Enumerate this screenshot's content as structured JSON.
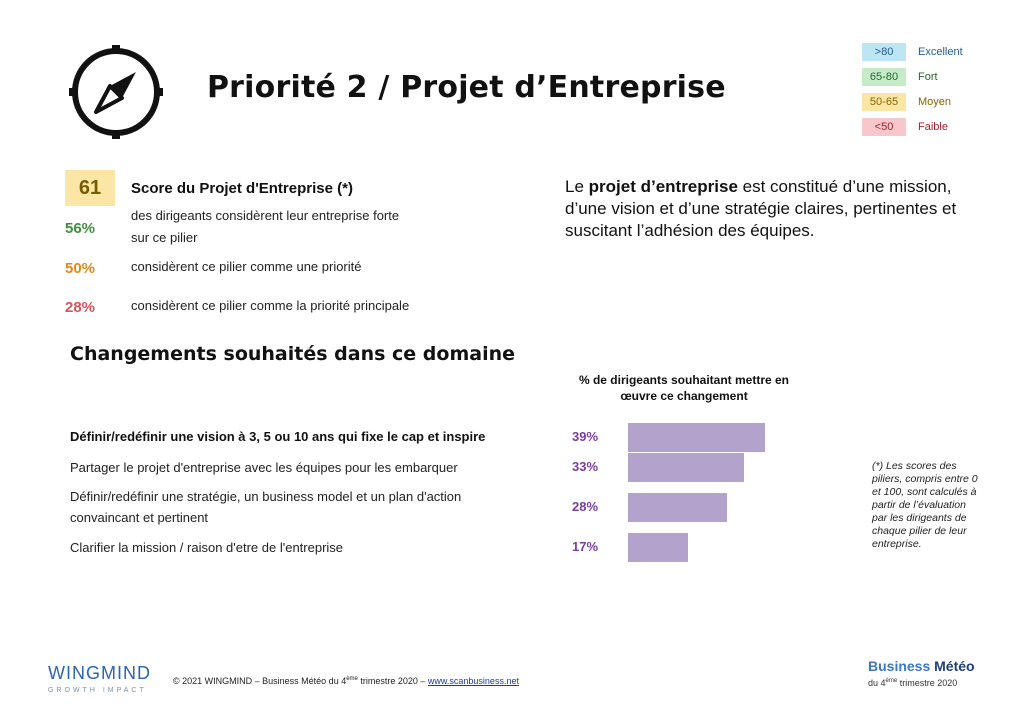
{
  "header": {
    "title": "Priorité 2 / Projet d’Entreprise",
    "icon": "compass-icon"
  },
  "legend": [
    {
      "range": ">80",
      "label": "Excellent",
      "bg": "#bde6f4",
      "fg": "#1f5f8b"
    },
    {
      "range": "65-80",
      "label": "Fort",
      "bg": "#c6ebc9",
      "fg": "#1f6b2a"
    },
    {
      "range": "50-65",
      "label": "Moyen",
      "bg": "#fbe6a6",
      "fg": "#8a6400"
    },
    {
      "range": "<50",
      "label": "Faible",
      "bg": "#f8c7cb",
      "fg": "#a0232b"
    }
  ],
  "score": {
    "value": "61",
    "label": "Score du Projet d'Entreprise (*)"
  },
  "stats": [
    {
      "pct": "56%",
      "text1": "des dirigeants considèrent leur entreprise forte",
      "text2": "sur ce pilier",
      "color": "#3f8f3f"
    },
    {
      "pct": "50%",
      "text1": "considèrent ce pilier comme une priorité",
      "text2": "",
      "color": "#e08a1e"
    },
    {
      "pct": "28%",
      "text1": "considèrent ce pilier comme la priorité principale",
      "text2": "",
      "color": "#e0505a"
    }
  ],
  "description": {
    "part1": "Le ",
    "bold": "projet d’entreprise",
    "part2": " est constitué d’une mission, d’une vision et d’une stratégie claires, pertinentes et suscitant l’adhésion des équipes."
  },
  "section_title": "Changements souhaités dans ce domaine",
  "chart_data": {
    "type": "bar",
    "title": "% de dirigeants souhaitant mettre en œuvre ce changement",
    "categories": [
      "Définir/redéfinir une vision à 3, 5 ou 10 ans qui fixe le cap et inspire",
      "Partager le projet d'entreprise avec les équipes pour les embarquer",
      "Définir/redéfinir une stratégie, un business model et un plan d'action convaincant et pertinent",
      "Clarifier la mission / raison d'etre de l'entreprise"
    ],
    "values": [
      39,
      33,
      28,
      17
    ],
    "labels": [
      "39%",
      "33%",
      "28%",
      "17%"
    ],
    "orientation": "horizontal",
    "bar_color": "#b3a2cc"
  },
  "changes_text": [
    {
      "line1": "Définir/redéfinir une vision à 3, 5 ou 10 ans qui fixe le cap et inspire",
      "line2": ""
    },
    {
      "line1": "Partager le projet d'entreprise avec les équipes pour les embarquer",
      "line2": ""
    },
    {
      "line1": "Définir/redéfinir une stratégie, un business model et un plan d'action",
      "line2": "convaincant et pertinent"
    },
    {
      "line1": "Clarifier la mission / raison d'etre de l'entreprise",
      "line2": ""
    }
  ],
  "footnote": "(*) Les scores des piliers, compris entre 0 et 100, sont calculés à partir de l’évaluation par les dirigeants de chaque pilier de leur entreprise.",
  "footer": {
    "brand": "WINGMIND",
    "brand_sub": "GROWTH IMPACT",
    "copyright_pre": "© 2021 WINGMIND – Business Météo du 4",
    "copyright_sup": "ème",
    "copyright_post": " trimestre 2020 – ",
    "link": "www.scanbusiness.net",
    "bm_title_1": "Business ",
    "bm_title_2": "Météo",
    "bm_sub_pre": "du 4",
    "bm_sub_sup": "ème",
    "bm_sub_post": " trimestre 2020"
  }
}
